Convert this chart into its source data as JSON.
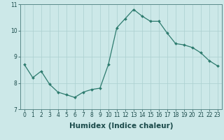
{
  "x": [
    0,
    1,
    2,
    3,
    4,
    5,
    6,
    7,
    8,
    9,
    10,
    11,
    12,
    13,
    14,
    15,
    16,
    17,
    18,
    19,
    20,
    21,
    22,
    23
  ],
  "y": [
    8.7,
    8.2,
    8.45,
    7.95,
    7.65,
    7.55,
    7.45,
    7.65,
    7.75,
    7.8,
    8.7,
    10.1,
    10.45,
    10.8,
    10.55,
    10.35,
    10.35,
    9.9,
    9.5,
    9.45,
    9.35,
    9.15,
    8.85,
    8.65
  ],
  "xlabel": "Humidex (Indice chaleur)",
  "ylim": [
    7,
    11
  ],
  "xlim": [
    -0.5,
    23.5
  ],
  "yticks": [
    7,
    8,
    9,
    10,
    11
  ],
  "xticks": [
    0,
    1,
    2,
    3,
    4,
    5,
    6,
    7,
    8,
    9,
    10,
    11,
    12,
    13,
    14,
    15,
    16,
    17,
    18,
    19,
    20,
    21,
    22,
    23
  ],
  "line_color": "#2d7b6e",
  "marker": "D",
  "marker_size": 2.0,
  "bg_color": "#cce8e8",
  "grid_color": "#aacfcf",
  "axes_color": "#5a8a8a",
  "tick_label_fontsize": 5.5,
  "xlabel_fontsize": 7.5
}
